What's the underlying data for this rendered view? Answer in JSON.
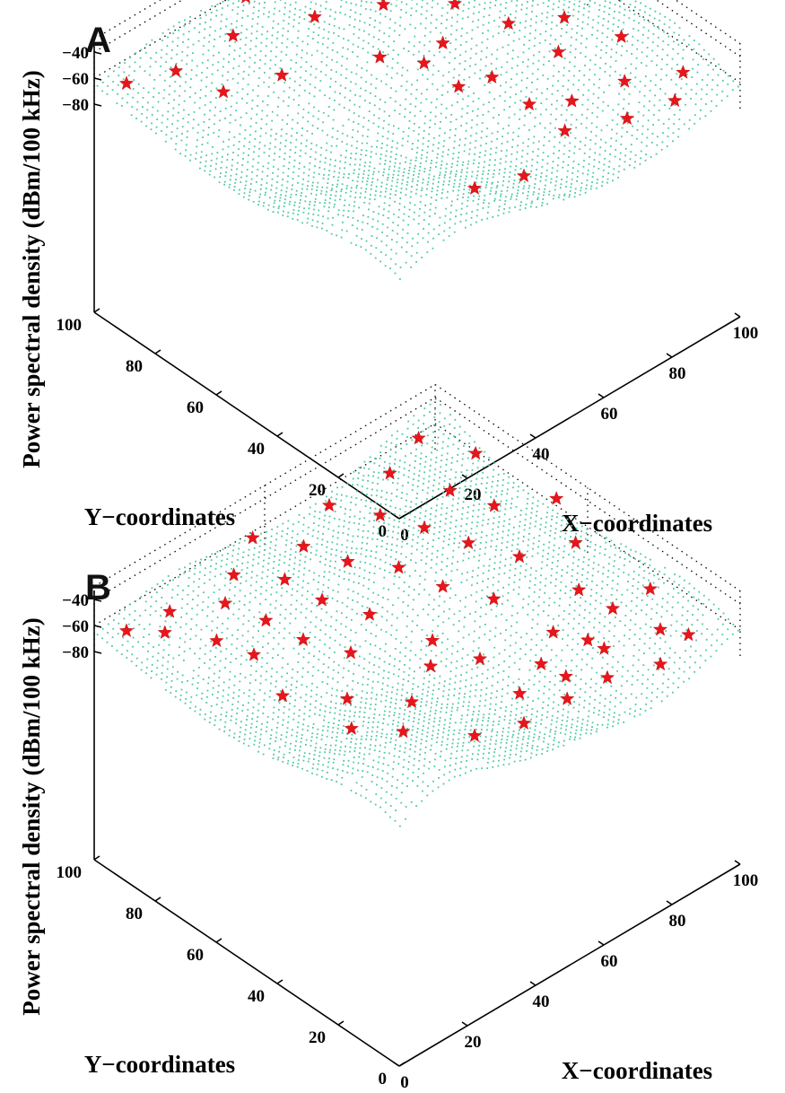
{
  "figure": {
    "panels": [
      {
        "letter": "A",
        "zlabel": "Power spectral density (dBm/100 kHz)",
        "xlabel": "X−coordinates",
        "ylabel": "Y−coordinates",
        "xticks": [
          "0",
          "20",
          "40",
          "60",
          "80",
          "100"
        ],
        "yticks": [
          "0",
          "20",
          "40",
          "60",
          "80",
          "100"
        ],
        "zticks": [
          "−40",
          "−60",
          "−80"
        ]
      },
      {
        "letter": "B",
        "zlabel": "Power spectral density (dBm/100 kHz)",
        "xlabel": "X−coordinates",
        "ylabel": "Y−coordinates",
        "xticks": [
          "0",
          "20",
          "40",
          "60",
          "80",
          "100"
        ],
        "yticks": [
          "0",
          "20",
          "40",
          "60",
          "80",
          "100"
        ],
        "zticks": [
          "−40",
          "−60",
          "−80"
        ]
      }
    ]
  },
  "chart_data": [
    {
      "type": "scatter",
      "panel": "A",
      "surface_color": "#4cc9a4",
      "marker_color": "#e8161c",
      "xlim": [
        0,
        100
      ],
      "ylim": [
        0,
        100
      ],
      "zlim": [
        -80,
        -30
      ],
      "grid": true,
      "sensor_points": [
        [
          5,
          95,
          -64
        ],
        [
          15,
          90,
          -62
        ],
        [
          20,
          80,
          -70
        ],
        [
          30,
          88,
          -55
        ],
        [
          30,
          72,
          -60
        ],
        [
          40,
          95,
          -52
        ],
        [
          45,
          78,
          -48
        ],
        [
          48,
          60,
          -55
        ],
        [
          52,
          50,
          -50
        ],
        [
          55,
          42,
          -60
        ],
        [
          58,
          70,
          -46
        ],
        [
          60,
          82,
          -45
        ],
        [
          62,
          55,
          -58
        ],
        [
          63,
          40,
          -62
        ],
        [
          65,
          30,
          -70
        ],
        [
          70,
          60,
          -48
        ],
        [
          72,
          72,
          -42
        ],
        [
          73,
          25,
          -72
        ],
        [
          75,
          48,
          -52
        ],
        [
          78,
          35,
          -58
        ],
        [
          80,
          82,
          -40
        ],
        [
          82,
          62,
          -44
        ],
        [
          84,
          20,
          -66
        ],
        [
          86,
          42,
          -55
        ],
        [
          88,
          55,
          -47
        ],
        [
          90,
          75,
          -46
        ],
        [
          92,
          30,
          -60
        ],
        [
          94,
          12,
          -62
        ],
        [
          96,
          45,
          -50
        ],
        [
          98,
          65,
          -48
        ],
        [
          40,
          20,
          -80
        ],
        [
          50,
          15,
          -78
        ],
        [
          62,
          15,
          -62
        ],
        [
          74,
          8,
          -60
        ],
        [
          88,
          8,
          -68
        ]
      ]
    },
    {
      "type": "scatter",
      "panel": "B",
      "surface_color": "#4cc9a4",
      "marker_color": "#e8161c",
      "xlim": [
        0,
        100
      ],
      "ylim": [
        0,
        100
      ],
      "zlim": [
        -80,
        -30
      ],
      "grid": true,
      "sensor_points": [
        [
          5,
          95,
          -64
        ],
        [
          10,
          88,
          -62
        ],
        [
          15,
          92,
          -60
        ],
        [
          18,
          80,
          -68
        ],
        [
          20,
          70,
          -66
        ],
        [
          25,
          85,
          -58
        ],
        [
          28,
          75,
          -60
        ],
        [
          30,
          65,
          -62
        ],
        [
          32,
          90,
          -55
        ],
        [
          35,
          55,
          -64
        ],
        [
          38,
          80,
          -52
        ],
        [
          40,
          70,
          -55
        ],
        [
          42,
          95,
          -50
        ],
        [
          45,
          60,
          -58
        ],
        [
          48,
          85,
          -50
        ],
        [
          50,
          45,
          -62
        ],
        [
          52,
          75,
          -52
        ],
        [
          55,
          35,
          -68
        ],
        [
          58,
          65,
          -50
        ],
        [
          60,
          90,
          -45
        ],
        [
          62,
          55,
          -55
        ],
        [
          64,
          25,
          -70
        ],
        [
          66,
          80,
          -46
        ],
        [
          68,
          45,
          -58
        ],
        [
          70,
          70,
          -46
        ],
        [
          72,
          30,
          -66
        ],
        [
          74,
          60,
          -48
        ],
        [
          76,
          88,
          -42
        ],
        [
          78,
          20,
          -72
        ],
        [
          80,
          50,
          -52
        ],
        [
          82,
          75,
          -44
        ],
        [
          84,
          35,
          -60
        ],
        [
          86,
          65,
          -46
        ],
        [
          88,
          92,
          -40
        ],
        [
          90,
          15,
          -68
        ],
        [
          92,
          45,
          -52
        ],
        [
          94,
          80,
          -42
        ],
        [
          96,
          25,
          -62
        ],
        [
          98,
          58,
          -48
        ],
        [
          40,
          20,
          -80
        ],
        [
          50,
          15,
          -78
        ],
        [
          60,
          12,
          -70
        ],
        [
          70,
          10,
          -66
        ],
        [
          82,
          6,
          -68
        ],
        [
          92,
          8,
          -64
        ],
        [
          55,
          22,
          -74
        ],
        [
          65,
          18,
          -70
        ],
        [
          75,
          22,
          -64
        ],
        [
          85,
          25,
          -60
        ],
        [
          45,
          40,
          -66
        ],
        [
          35,
          35,
          -70
        ],
        [
          25,
          45,
          -68
        ],
        [
          15,
          55,
          -66
        ],
        [
          28,
          30,
          -74
        ],
        [
          20,
          38,
          -72
        ]
      ]
    }
  ]
}
